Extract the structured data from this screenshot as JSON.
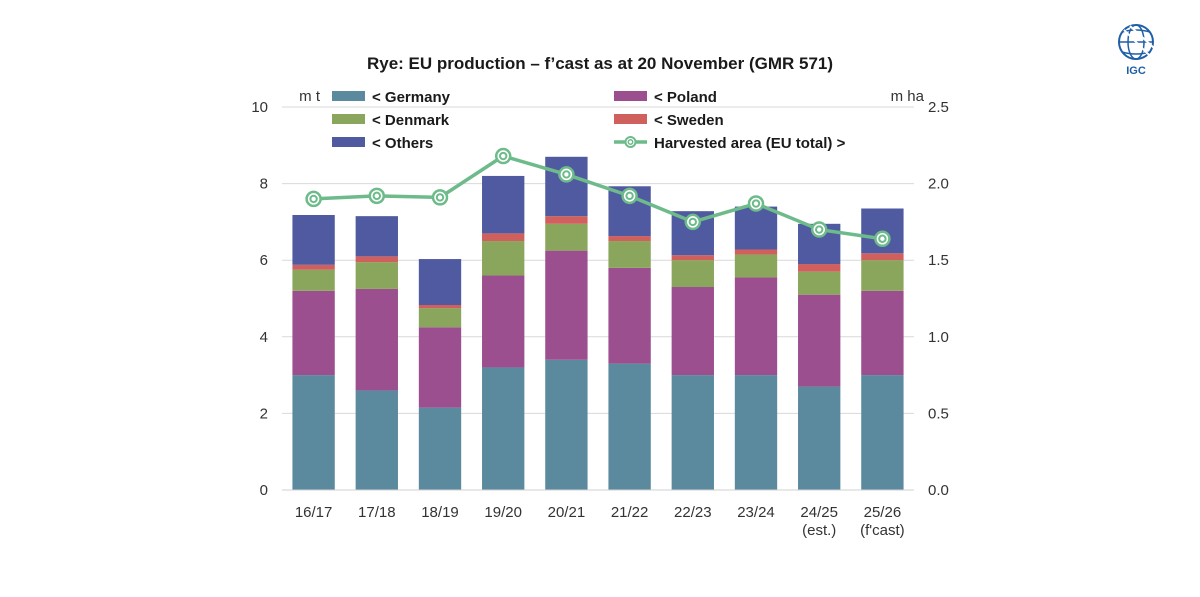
{
  "chart_data": {
    "type": "bar",
    "stacked": true,
    "title": "Rye: EU production – f’cast as at 20 November (GMR 571)",
    "left_axis_unit": "m t",
    "right_axis_unit": "m ha",
    "ylim": [
      0,
      10
    ],
    "y2lim": [
      0,
      2.5
    ],
    "y_ticks": [
      "0",
      "2",
      "4",
      "6",
      "8",
      "10"
    ],
    "y2_ticks": [
      "0.0",
      "0.5",
      "1.0",
      "1.5",
      "2.0",
      "2.5"
    ],
    "categories": [
      [
        "16/17"
      ],
      [
        "17/18"
      ],
      [
        "18/19"
      ],
      [
        "19/20"
      ],
      [
        "20/21"
      ],
      [
        "21/22"
      ],
      [
        "22/23"
      ],
      [
        "23/24"
      ],
      [
        "24/25",
        "(est.)"
      ],
      [
        "25/26",
        "(f'cast)"
      ]
    ],
    "series": [
      {
        "name": "< Germany",
        "color": "#5b8a9e",
        "values": [
          3.0,
          2.6,
          2.15,
          3.2,
          3.4,
          3.3,
          3.0,
          3.0,
          2.7,
          3.0
        ]
      },
      {
        "name": "< Poland",
        "color": "#9c4f8e",
        "values": [
          2.2,
          2.65,
          2.1,
          2.4,
          2.85,
          2.5,
          2.3,
          2.55,
          2.4,
          2.2
        ]
      },
      {
        "name": "< Denmark",
        "color": "#8aa65c",
        "values": [
          0.55,
          0.7,
          0.5,
          0.9,
          0.7,
          0.7,
          0.7,
          0.6,
          0.6,
          0.8
        ]
      },
      {
        "name": "< Sweden",
        "color": "#d0605e",
        "values": [
          0.13,
          0.15,
          0.08,
          0.2,
          0.2,
          0.13,
          0.13,
          0.13,
          0.2,
          0.18
        ]
      },
      {
        "name": "< Others",
        "color": "#4f5aa0",
        "values": [
          1.3,
          1.05,
          1.2,
          1.5,
          1.55,
          1.3,
          1.15,
          1.12,
          1.05,
          1.17
        ]
      }
    ],
    "line_series": {
      "name": "Harvested area (EU total) >",
      "color": "#6dbb8a",
      "axis": "right",
      "values": [
        1.9,
        1.92,
        1.91,
        2.18,
        2.06,
        1.92,
        1.75,
        1.87,
        1.7,
        1.64
      ]
    }
  },
  "logo": {
    "text": "IGC"
  }
}
